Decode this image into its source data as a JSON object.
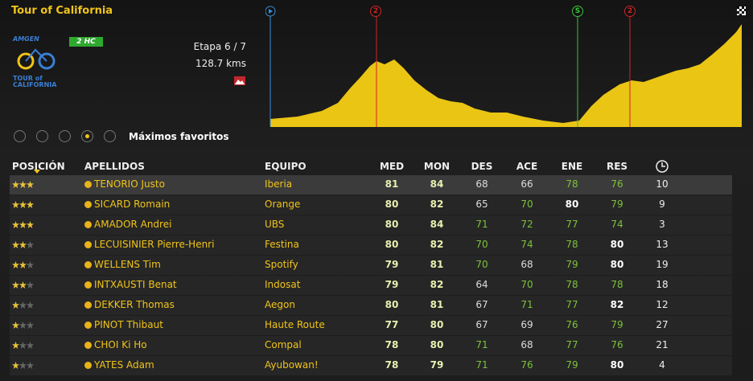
{
  "header": {
    "title": "Tour of California",
    "logo_top": "AMGEN",
    "logo_bottom": "TOUR of CALIFORNIA",
    "category": "2 HC",
    "stage": "Etapa 6 / 7",
    "distance": "128.7 kms"
  },
  "profile": {
    "markers": [
      "2",
      "S",
      "2"
    ]
  },
  "filter": {
    "label": "Máximos favoritos"
  },
  "table": {
    "columns": [
      "POSICIÓN",
      "APELLIDOS",
      "EQUIPO",
      "MED",
      "MON",
      "DES",
      "ACE",
      "ENE",
      "RES"
    ],
    "rows": [
      {
        "stars": 3,
        "name": "TENORIO Justo",
        "team": "Iberia",
        "stats": [
          81,
          84,
          68,
          66,
          78,
          76
        ],
        "time": 10
      },
      {
        "stars": 3,
        "name": "SICARD Romain",
        "team": "Orange",
        "stats": [
          80,
          82,
          65,
          70,
          80,
          79
        ],
        "time": 9
      },
      {
        "stars": 3,
        "name": "AMADOR Andrei",
        "team": "UBS",
        "stats": [
          80,
          84,
          71,
          72,
          77,
          74
        ],
        "time": 3
      },
      {
        "stars": 2,
        "name": "LECUISINIER Pierre-Henri",
        "team": "Festina",
        "stats": [
          80,
          82,
          70,
          74,
          78,
          80
        ],
        "time": 13
      },
      {
        "stars": 2,
        "name": "WELLENS Tim",
        "team": "Spotify",
        "stats": [
          79,
          81,
          70,
          68,
          79,
          80
        ],
        "time": 19
      },
      {
        "stars": 2,
        "name": "INTXAUSTI Benat",
        "team": "Indosat",
        "stats": [
          79,
          82,
          64,
          70,
          78,
          78
        ],
        "time": 18
      },
      {
        "stars": 1,
        "name": "DEKKER Thomas",
        "team": "Aegon",
        "stats": [
          80,
          81,
          67,
          71,
          77,
          82
        ],
        "time": 12
      },
      {
        "stars": 1,
        "name": "PINOT Thibaut",
        "team": "Haute Route",
        "stats": [
          77,
          80,
          67,
          69,
          76,
          79
        ],
        "time": 27
      },
      {
        "stars": 1,
        "name": "CHOI Ki Ho",
        "team": "Compal",
        "stats": [
          78,
          80,
          71,
          68,
          77,
          76
        ],
        "time": 21
      },
      {
        "stars": 1,
        "name": "YATES Adam",
        "team": "Ayubowan!",
        "stats": [
          78,
          79,
          71,
          76,
          79,
          80
        ],
        "time": 4
      }
    ]
  }
}
